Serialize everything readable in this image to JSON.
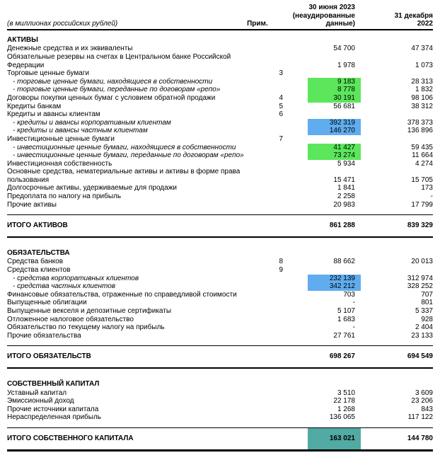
{
  "colors": {
    "highlight_green": "#5ce65c",
    "highlight_blue": "#5fadee",
    "highlight_teal": "#51aaa3"
  },
  "table": {
    "header": {
      "units": "(в миллионах российских рублей)",
      "note_col": "Прим.",
      "col1": "30 июня 2023\n(неаудированные\nданные)",
      "col2": "31 декабря\n2022"
    },
    "sections": [
      {
        "title": "АКТИВЫ",
        "rows": [
          {
            "label": "Денежные средства и их эквиваленты",
            "note": "",
            "v1": "54 700",
            "v2": "47 374"
          },
          {
            "label": "Обязательные резервы на счетах в Центральном банке Российской\nФедерации",
            "note": "",
            "v1": "1 978",
            "v2": "1 073"
          },
          {
            "label": "Торговые ценные бумаги",
            "note": "3",
            "v1": "",
            "v2": ""
          },
          {
            "label": "- торговые ценные бумаги, находящиеся в собственности",
            "italic": true,
            "note": "",
            "v1": "9 183",
            "v2": "28 313",
            "hl": "green"
          },
          {
            "label": "- торговые ценные бумаги, переданные по договорам «репо»",
            "italic": true,
            "note": "",
            "v1": "8 778",
            "v2": "1 832",
            "hl": "green"
          },
          {
            "label": "Договоры покупки ценных бумаг с условием обратной продажи",
            "note": "4",
            "v1": "30 191",
            "v2": "98 106",
            "hl": "green"
          },
          {
            "label": "Кредиты банкам",
            "note": "5",
            "v1": "56 681",
            "v2": "38 312"
          },
          {
            "label": "Кредиты и авансы клиентам",
            "note": "6",
            "v1": "",
            "v2": ""
          },
          {
            "label": "- кредиты и авансы корпоративным клиентам",
            "italic": true,
            "note": "",
            "v1": "392 319",
            "v2": "378 373",
            "hl": "blue"
          },
          {
            "label": "- кредиты и авансы частным клиентам",
            "italic": true,
            "note": "",
            "v1": "146 270",
            "v2": "136 896",
            "hl": "blue"
          },
          {
            "label": "Инвестиционные ценные бумаги",
            "note": "7",
            "v1": "",
            "v2": ""
          },
          {
            "label": "- инвестиционные ценные бумаги, находящиеся в собственности",
            "italic": true,
            "note": "",
            "v1": "41 427",
            "v2": "59 435",
            "hl": "green"
          },
          {
            "label": "- инвестиционные ценные бумаги, переданные по договорам «репо»",
            "italic": true,
            "note": "",
            "v1": "73 274",
            "v2": "11 664",
            "hl": "green"
          },
          {
            "label": "Инвестиционная собственность",
            "note": "",
            "v1": "5 934",
            "v2": "4 274"
          },
          {
            "label": "Основные средства, нематериальные активы и активы в форме права\nпользования",
            "note": "",
            "v1": "15 471",
            "v2": "15 705"
          },
          {
            "label": "Долгосрочные активы, удерживаемые для продажи",
            "note": "",
            "v1": "1 841",
            "v2": "173"
          },
          {
            "label": "Предоплата по налогу на прибыль",
            "note": "",
            "v1": "2 258",
            "v2": "-"
          },
          {
            "label": "Прочие активы",
            "note": "",
            "v1": "20 983",
            "v2": "17 799"
          }
        ],
        "total": {
          "label": "ИТОГО АКТИВОВ",
          "v1": "861 288",
          "v2": "839 329"
        }
      },
      {
        "title": "ОБЯЗАТЕЛЬСТВА",
        "rows": [
          {
            "label": "Средства банков",
            "note": "8",
            "v1": "88 662",
            "v2": "20 013"
          },
          {
            "label": "Средства клиентов",
            "note": "9",
            "v1": "",
            "v2": ""
          },
          {
            "label": "- средства корпоративных клиентов",
            "italic": true,
            "note": "",
            "v1": "232 139",
            "v2": "312 974",
            "hl": "blue"
          },
          {
            "label": "- средства частных клиентов",
            "italic": true,
            "note": "",
            "v1": "342 212",
            "v2": "328 252",
            "hl": "blue"
          },
          {
            "label": "Финансовые обязательства, отраженные по справедливой стоимости",
            "note": "",
            "v1": "703",
            "v2": "707"
          },
          {
            "label": "Выпущенные облигации",
            "note": "",
            "v1": "-",
            "v2": "801"
          },
          {
            "label": "Выпущенные векселя и депозитные сертификаты",
            "note": "",
            "v1": "5 107",
            "v2": "5 337"
          },
          {
            "label": "Отложенное налоговое обязательство",
            "note": "",
            "v1": "1 683",
            "v2": "928"
          },
          {
            "label": "Обязательство по текущему налогу на прибыль",
            "note": "",
            "v1": "-",
            "v2": "2 404"
          },
          {
            "label": "Прочие обязательства",
            "note": "",
            "v1": "27 761",
            "v2": "23 133"
          }
        ],
        "total": {
          "label": "ИТОГО ОБЯЗАТЕЛЬСТВ",
          "v1": "698 267",
          "v2": "694 549"
        }
      },
      {
        "title": "СОБСТВЕННЫЙ КАПИТАЛ",
        "rows": [
          {
            "label": "Уставный капитал",
            "note": "",
            "v1": "3 510",
            "v2": "3 609"
          },
          {
            "label": "Эмиссионный доход",
            "note": "",
            "v1": "22 178",
            "v2": "23 206"
          },
          {
            "label": "Прочие источники капитала",
            "note": "",
            "v1": "1 268",
            "v2": "843"
          },
          {
            "label": "Нераспределенная прибыль",
            "note": "",
            "v1": "136 065",
            "v2": "117 122"
          }
        ],
        "total": {
          "label": "ИТОГО СОБСТВЕННОГО КАПИТАЛА",
          "v1": "163 021",
          "v2": "144 780",
          "hl": "teal",
          "final": true
        }
      }
    ]
  }
}
